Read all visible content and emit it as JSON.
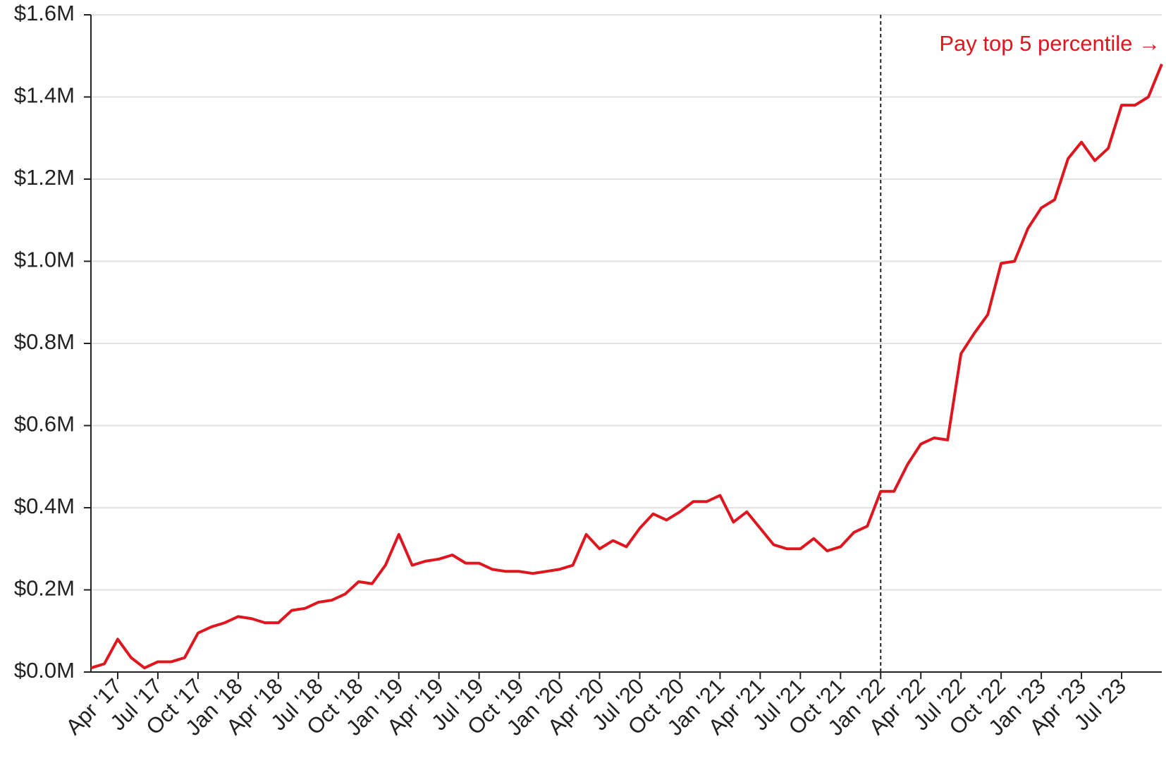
{
  "chart_data": {
    "type": "line",
    "categories": [
      null,
      null,
      "Apr '17",
      null,
      null,
      "Jul '17",
      null,
      null,
      "Oct '17",
      null,
      null,
      "Jan '18",
      null,
      null,
      "Apr '18",
      null,
      null,
      "Jul '18",
      null,
      null,
      "Oct '18",
      null,
      null,
      "Jan '19",
      null,
      null,
      "Apr '19",
      null,
      null,
      "Jul '19",
      null,
      null,
      "Oct '19",
      null,
      null,
      "Jan '20",
      null,
      null,
      "Apr '20",
      null,
      null,
      "Jul '20",
      null,
      null,
      "Oct '20",
      null,
      null,
      "Jan '21",
      null,
      null,
      "Apr '21",
      null,
      null,
      "Jul '21",
      null,
      null,
      "Oct '21",
      null,
      null,
      "Jan '22",
      null,
      null,
      "Apr '22",
      null,
      null,
      "Jul '22",
      null,
      null,
      "Oct '22",
      null,
      null,
      "Jan '23",
      null,
      null,
      "Apr '23",
      null,
      null,
      "Jul '23",
      null,
      null,
      null
    ],
    "series": [
      {
        "color": "#e0161e",
        "values": [
          0.01,
          0.02,
          0.08,
          0.035,
          0.01,
          0.025,
          0.025,
          0.035,
          0.095,
          0.11,
          0.12,
          0.135,
          0.13,
          0.12,
          0.12,
          0.15,
          0.155,
          0.17,
          0.175,
          0.19,
          0.22,
          0.215,
          0.26,
          0.335,
          0.26,
          0.27,
          0.275,
          0.285,
          0.265,
          0.265,
          0.25,
          0.245,
          0.245,
          0.24,
          0.245,
          0.25,
          0.26,
          0.335,
          0.3,
          0.32,
          0.305,
          0.35,
          0.385,
          0.37,
          0.39,
          0.415,
          0.415,
          0.43,
          0.365,
          0.39,
          0.35,
          0.31,
          0.3,
          0.3,
          0.325,
          0.295,
          0.305,
          0.34,
          0.355,
          0.44,
          0.44,
          0.505,
          0.555,
          0.57,
          0.565,
          0.775,
          0.825,
          0.87,
          0.995,
          1.0,
          1.08,
          1.13,
          1.15,
          1.25,
          1.29,
          1.245,
          1.275,
          1.38,
          1.38,
          1.4,
          1.48
        ]
      }
    ],
    "ylim": [
      0,
      1.6
    ],
    "yticks": [
      {
        "value": 0,
        "label": "$0.0M"
      },
      {
        "value": 0.2,
        "label": "$0.2M"
      },
      {
        "value": 0.4,
        "label": "$0.4M"
      },
      {
        "value": 0.6,
        "label": "$0.6M"
      },
      {
        "value": 0.8,
        "label": "$0.8M"
      },
      {
        "value": 1.0,
        "label": "$1.0M"
      },
      {
        "value": 1.2,
        "label": "$1.2M"
      },
      {
        "value": 1.4,
        "label": "$1.4M"
      },
      {
        "value": 1.6,
        "label": "$1.6M"
      }
    ],
    "grid": true,
    "annotation": {
      "text": "Pay top 5 percentile →",
      "x": "Jan '22",
      "color": "#e0161e"
    }
  }
}
